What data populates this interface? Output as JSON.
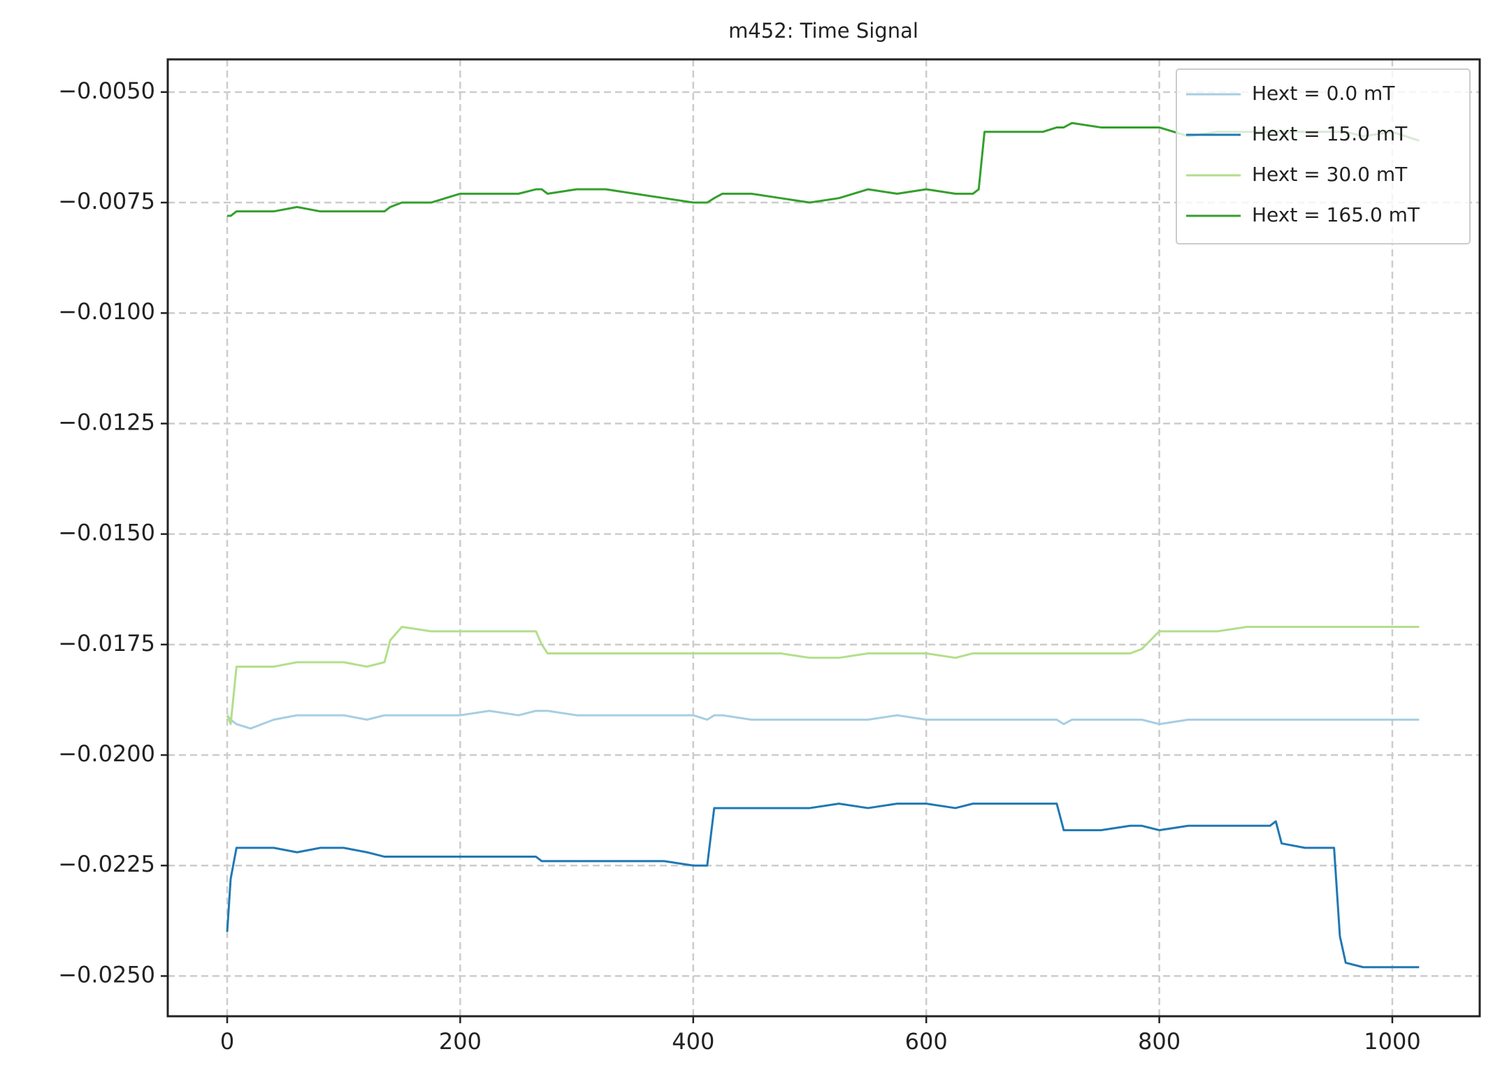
{
  "chart_data": {
    "type": "line",
    "title": "m452: Time Signal",
    "x": [
      0,
      3,
      8,
      20,
      40,
      60,
      80,
      100,
      120,
      135,
      140,
      150,
      175,
      200,
      225,
      250,
      265,
      270,
      275,
      300,
      325,
      350,
      375,
      400,
      412,
      418,
      425,
      450,
      475,
      500,
      525,
      550,
      575,
      600,
      625,
      640,
      645,
      650,
      675,
      700,
      712,
      718,
      725,
      750,
      775,
      785,
      800,
      825,
      850,
      875,
      895,
      900,
      905,
      925,
      945,
      950,
      955,
      960,
      975,
      1000,
      1023
    ],
    "series": [
      {
        "name": "Hext = 0.0 mT",
        "color": "#a6cee3",
        "values": [
          -0.0191,
          -0.0192,
          -0.0193,
          -0.0194,
          -0.0192,
          -0.0191,
          -0.0191,
          -0.0191,
          -0.0192,
          -0.0191,
          -0.0191,
          -0.0191,
          -0.0191,
          -0.0191,
          -0.019,
          -0.0191,
          -0.019,
          -0.019,
          -0.019,
          -0.0191,
          -0.0191,
          -0.0191,
          -0.0191,
          -0.0191,
          -0.0192,
          -0.0191,
          -0.0191,
          -0.0192,
          -0.0192,
          -0.0192,
          -0.0192,
          -0.0192,
          -0.0191,
          -0.0192,
          -0.0192,
          -0.0192,
          -0.0192,
          -0.0192,
          -0.0192,
          -0.0192,
          -0.0192,
          -0.0193,
          -0.0192,
          -0.0192,
          -0.0192,
          -0.0192,
          -0.0193,
          -0.0192,
          -0.0192,
          -0.0192,
          -0.0192,
          -0.0192,
          -0.0192,
          -0.0192,
          -0.0192,
          -0.0192,
          -0.0192,
          -0.0192,
          -0.0192,
          -0.0192,
          -0.0192
        ]
      },
      {
        "name": "Hext = 15.0 mT",
        "color": "#1f78b4",
        "values": [
          -0.024,
          -0.0228,
          -0.0221,
          -0.0221,
          -0.0221,
          -0.0222,
          -0.0221,
          -0.0221,
          -0.0222,
          -0.0223,
          -0.0223,
          -0.0223,
          -0.0223,
          -0.0223,
          -0.0223,
          -0.0223,
          -0.0223,
          -0.0224,
          -0.0224,
          -0.0224,
          -0.0224,
          -0.0224,
          -0.0224,
          -0.0225,
          -0.0225,
          -0.0212,
          -0.0212,
          -0.0212,
          -0.0212,
          -0.0212,
          -0.0211,
          -0.0212,
          -0.0211,
          -0.0211,
          -0.0212,
          -0.0211,
          -0.0211,
          -0.0211,
          -0.0211,
          -0.0211,
          -0.0211,
          -0.0217,
          -0.0217,
          -0.0217,
          -0.0216,
          -0.0216,
          -0.0217,
          -0.0216,
          -0.0216,
          -0.0216,
          -0.0216,
          -0.0215,
          -0.022,
          -0.0221,
          -0.0221,
          -0.0221,
          -0.0241,
          -0.0247,
          -0.0248,
          -0.0248,
          -0.0248
        ]
      },
      {
        "name": "Hext = 30.0 mT",
        "color": "#b2df8a",
        "values": [
          -0.0191,
          -0.0193,
          -0.018,
          -0.018,
          -0.018,
          -0.0179,
          -0.0179,
          -0.0179,
          -0.018,
          -0.0179,
          -0.0174,
          -0.0171,
          -0.0172,
          -0.0172,
          -0.0172,
          -0.0172,
          -0.0172,
          -0.0175,
          -0.0177,
          -0.0177,
          -0.0177,
          -0.0177,
          -0.0177,
          -0.0177,
          -0.0177,
          -0.0177,
          -0.0177,
          -0.0177,
          -0.0177,
          -0.0178,
          -0.0178,
          -0.0177,
          -0.0177,
          -0.0177,
          -0.0178,
          -0.0177,
          -0.0177,
          -0.0177,
          -0.0177,
          -0.0177,
          -0.0177,
          -0.0177,
          -0.0177,
          -0.0177,
          -0.0177,
          -0.0176,
          -0.0172,
          -0.0172,
          -0.0172,
          -0.0171,
          -0.0171,
          -0.0171,
          -0.0171,
          -0.0171,
          -0.0171,
          -0.0171,
          -0.0171,
          -0.0171,
          -0.0171,
          -0.0171,
          -0.0171
        ]
      },
      {
        "name": "Hext = 165.0 mT",
        "color": "#33a02c",
        "values": [
          -0.0078,
          -0.0078,
          -0.0077,
          -0.0077,
          -0.0077,
          -0.0076,
          -0.0077,
          -0.0077,
          -0.0077,
          -0.0077,
          -0.0076,
          -0.0075,
          -0.0075,
          -0.0073,
          -0.0073,
          -0.0073,
          -0.0072,
          -0.0072,
          -0.0073,
          -0.0072,
          -0.0072,
          -0.0073,
          -0.0074,
          -0.0075,
          -0.0075,
          -0.0074,
          -0.0073,
          -0.0073,
          -0.0074,
          -0.0075,
          -0.0074,
          -0.0072,
          -0.0073,
          -0.0072,
          -0.0073,
          -0.0073,
          -0.0072,
          -0.0059,
          -0.0059,
          -0.0059,
          -0.0058,
          -0.0058,
          -0.0057,
          -0.0058,
          -0.0058,
          -0.0058,
          -0.0058,
          -0.006,
          -0.0059,
          -0.0059,
          -0.0059,
          -0.0059,
          -0.0059,
          -0.0059,
          -0.0059,
          -0.0059,
          -0.0059,
          -0.0059,
          -0.006,
          -0.0059,
          -0.0061
        ]
      }
    ],
    "xlim": [
      -51,
      1075
    ],
    "xticks": [
      0,
      200,
      400,
      600,
      800,
      1000
    ],
    "ylim": [
      -0.02591,
      -0.00426
    ],
    "yticks": [
      {
        "value": -0.005,
        "label": "−0.0050"
      },
      {
        "value": -0.0075,
        "label": "−0.0075"
      },
      {
        "value": -0.01,
        "label": "−0.0100"
      },
      {
        "value": -0.0125,
        "label": "−0.0125"
      },
      {
        "value": -0.015,
        "label": "−0.0150"
      },
      {
        "value": -0.0175,
        "label": "−0.0175"
      },
      {
        "value": -0.02,
        "label": "−0.0200"
      },
      {
        "value": -0.0225,
        "label": "−0.0225"
      },
      {
        "value": -0.025,
        "label": "−0.0250"
      }
    ],
    "grid": true,
    "legend": "upper right"
  }
}
